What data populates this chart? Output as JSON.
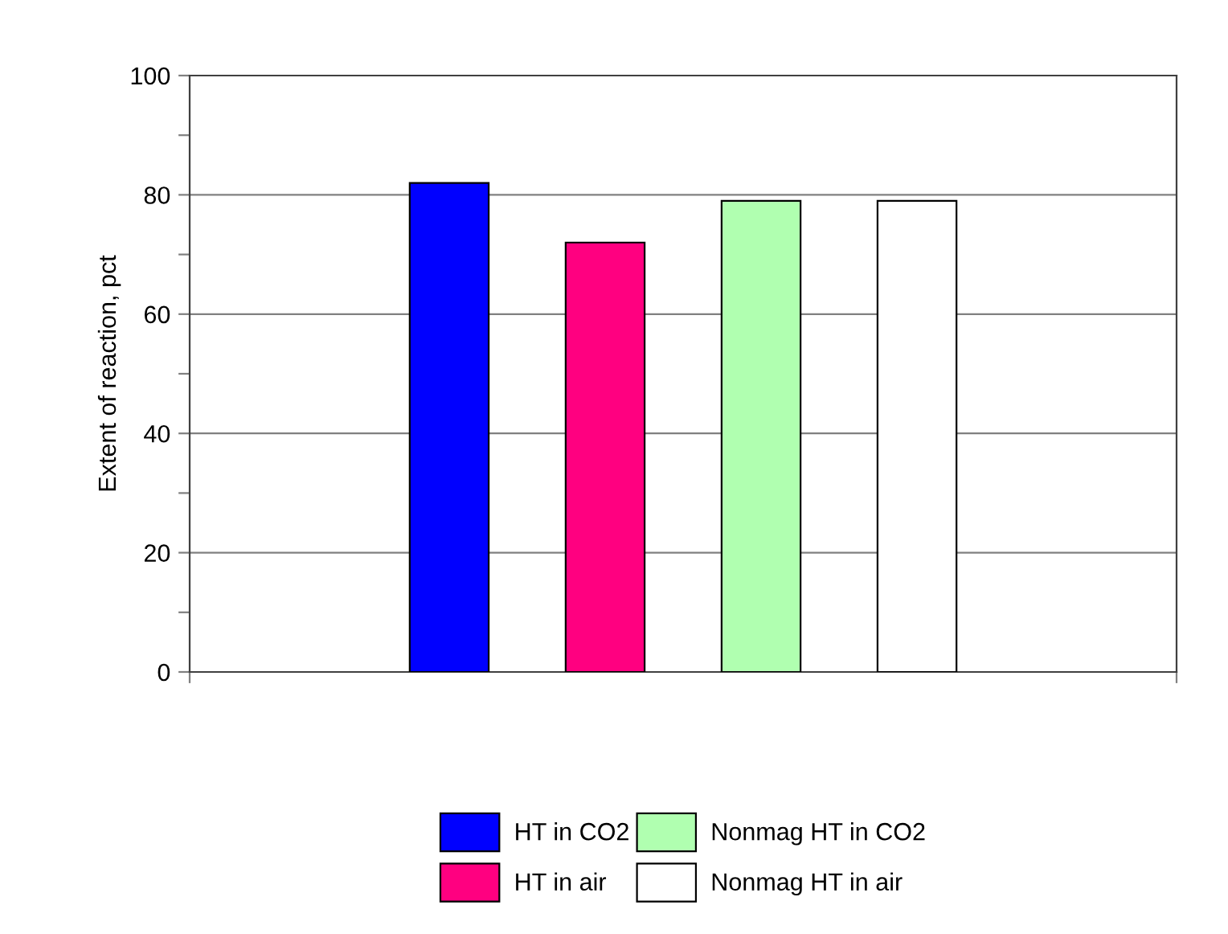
{
  "chart_data": {
    "type": "bar",
    "ylabel": "Extent of reaction, pct",
    "categories": [
      null
    ],
    "series": [
      {
        "name": "HT in CO2",
        "color": "#0000ff",
        "values": [
          82
        ]
      },
      {
        "name": "HT in air",
        "color": "#ff0080",
        "values": [
          72
        ]
      },
      {
        "name": "Nonmag HT in CO2",
        "color": "#b0ffb0",
        "values": [
          79
        ]
      },
      {
        "name": "Nonmag HT in air",
        "color": "#ffffff",
        "values": [
          79
        ]
      }
    ],
    "ylim": [
      0,
      100
    ],
    "yticks": [
      0,
      {
        "value": 10,
        "label": null
      },
      20,
      {
        "value": 30,
        "label": null
      },
      40,
      {
        "value": 50,
        "label": null
      },
      60,
      {
        "value": 70,
        "label": null
      },
      80,
      {
        "value": 90,
        "label": null
      },
      100
    ],
    "grid": "y",
    "legend": "bottom"
  }
}
